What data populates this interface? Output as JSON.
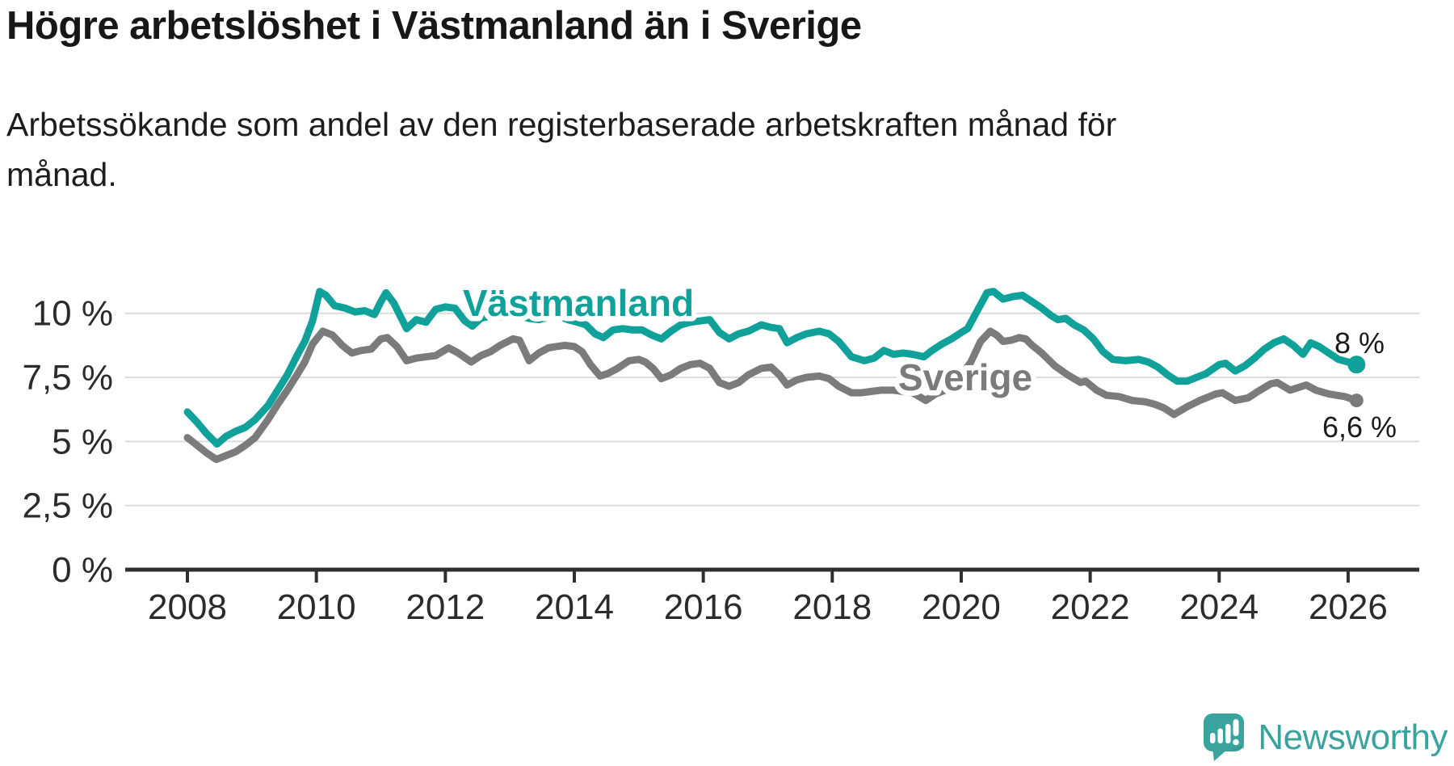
{
  "header": {
    "title": "Högre arbetslöshet i Västmanland än i Sverige",
    "subtitle": "Arbetssökande som andel av den registerbaserade arbetskraften månad för månad."
  },
  "footer": {
    "brand": "Newsworthy"
  },
  "theme": {
    "background": "#ffffff",
    "title_color": "#171717",
    "tick_text_color": "#2b2b2b",
    "annotation_color": "#1a1a1a",
    "gridline_color": "#dcdcdc",
    "axis_color": "#2f2f2f",
    "teal": "#10A29A",
    "gray": "#7b7b7b",
    "logo_teal": "#3BA39D",
    "logo_shade": "#2f8f8a"
  },
  "chart_data": {
    "type": "line",
    "title": "Högre arbetslöshet i Västmanland än i Sverige",
    "subtitle": "Arbetssökande som andel av den registerbaserade arbetskraften månad för månad.",
    "unit": "%",
    "xlabel": "",
    "ylabel": "",
    "x_range": [
      2007.03,
      2027.1
    ],
    "ylim": [
      0,
      11.6
    ],
    "grid": true,
    "legend": "inline-labels",
    "y_ticks": [
      {
        "value": 0,
        "label": "0 %"
      },
      {
        "value": 2.5,
        "label": "2,5 %"
      },
      {
        "value": 5,
        "label": "5 %"
      },
      {
        "value": 7.5,
        "label": "7,5 %"
      },
      {
        "value": 10,
        "label": "10 %"
      }
    ],
    "x_ticks": [
      {
        "value": 2008,
        "label": "2008"
      },
      {
        "value": 2010,
        "label": "2010"
      },
      {
        "value": 2012,
        "label": "2012"
      },
      {
        "value": 2014,
        "label": "2014"
      },
      {
        "value": 2016,
        "label": "2016"
      },
      {
        "value": 2018,
        "label": "2018"
      },
      {
        "value": 2020,
        "label": "2020"
      },
      {
        "value": 2022,
        "label": "2022"
      },
      {
        "value": 2024,
        "label": "2024"
      },
      {
        "value": 2026,
        "label": "2026"
      }
    ],
    "series": [
      {
        "name": "Sverige",
        "color": "#7b7b7b",
        "end_label": "6,6 %",
        "end_value": 6.6,
        "points": [
          [
            2008.0,
            5.15
          ],
          [
            2008.15,
            4.85
          ],
          [
            2008.3,
            4.55
          ],
          [
            2008.45,
            4.3
          ],
          [
            2008.6,
            4.45
          ],
          [
            2008.75,
            4.6
          ],
          [
            2008.9,
            4.85
          ],
          [
            2009.05,
            5.15
          ],
          [
            2009.25,
            5.85
          ],
          [
            2009.4,
            6.45
          ],
          [
            2009.55,
            7.0
          ],
          [
            2009.7,
            7.6
          ],
          [
            2009.82,
            8.1
          ],
          [
            2009.94,
            8.8
          ],
          [
            2010.1,
            9.3
          ],
          [
            2010.25,
            9.15
          ],
          [
            2010.4,
            8.75
          ],
          [
            2010.55,
            8.45
          ],
          [
            2010.7,
            8.55
          ],
          [
            2010.85,
            8.6
          ],
          [
            2011.0,
            9.0
          ],
          [
            2011.1,
            9.05
          ],
          [
            2011.25,
            8.7
          ],
          [
            2011.4,
            8.15
          ],
          [
            2011.55,
            8.25
          ],
          [
            2011.7,
            8.3
          ],
          [
            2011.85,
            8.35
          ],
          [
            2012.05,
            8.65
          ],
          [
            2012.2,
            8.45
          ],
          [
            2012.4,
            8.1
          ],
          [
            2012.55,
            8.35
          ],
          [
            2012.7,
            8.5
          ],
          [
            2012.85,
            8.75
          ],
          [
            2013.05,
            9.0
          ],
          [
            2013.15,
            8.95
          ],
          [
            2013.3,
            8.15
          ],
          [
            2013.45,
            8.45
          ],
          [
            2013.6,
            8.65
          ],
          [
            2013.72,
            8.7
          ],
          [
            2013.85,
            8.75
          ],
          [
            2014.0,
            8.7
          ],
          [
            2014.12,
            8.5
          ],
          [
            2014.25,
            8.0
          ],
          [
            2014.4,
            7.55
          ],
          [
            2014.52,
            7.65
          ],
          [
            2014.67,
            7.85
          ],
          [
            2014.85,
            8.15
          ],
          [
            2015.0,
            8.2
          ],
          [
            2015.1,
            8.1
          ],
          [
            2015.22,
            7.85
          ],
          [
            2015.35,
            7.45
          ],
          [
            2015.5,
            7.6
          ],
          [
            2015.65,
            7.85
          ],
          [
            2015.8,
            8.0
          ],
          [
            2015.95,
            8.05
          ],
          [
            2016.1,
            7.85
          ],
          [
            2016.25,
            7.3
          ],
          [
            2016.4,
            7.15
          ],
          [
            2016.55,
            7.3
          ],
          [
            2016.7,
            7.6
          ],
          [
            2016.9,
            7.85
          ],
          [
            2017.05,
            7.9
          ],
          [
            2017.18,
            7.6
          ],
          [
            2017.3,
            7.2
          ],
          [
            2017.45,
            7.4
          ],
          [
            2017.6,
            7.5
          ],
          [
            2017.8,
            7.55
          ],
          [
            2017.95,
            7.45
          ],
          [
            2018.1,
            7.15
          ],
          [
            2018.3,
            6.9
          ],
          [
            2018.45,
            6.9
          ],
          [
            2018.6,
            6.95
          ],
          [
            2018.75,
            7.0
          ],
          [
            2018.95,
            7.0
          ],
          [
            2019.1,
            6.95
          ],
          [
            2019.25,
            6.9
          ],
          [
            2019.45,
            6.6
          ],
          [
            2019.6,
            6.85
          ],
          [
            2019.75,
            7.0
          ],
          [
            2019.95,
            7.4
          ],
          [
            2020.15,
            8.1
          ],
          [
            2020.3,
            8.9
          ],
          [
            2020.45,
            9.3
          ],
          [
            2020.55,
            9.15
          ],
          [
            2020.65,
            8.9
          ],
          [
            2020.78,
            8.95
          ],
          [
            2020.9,
            9.05
          ],
          [
            2021.0,
            9.0
          ],
          [
            2021.1,
            8.75
          ],
          [
            2021.25,
            8.45
          ],
          [
            2021.45,
            7.95
          ],
          [
            2021.65,
            7.6
          ],
          [
            2021.85,
            7.3
          ],
          [
            2021.93,
            7.35
          ],
          [
            2022.1,
            7.0
          ],
          [
            2022.25,
            6.8
          ],
          [
            2022.45,
            6.75
          ],
          [
            2022.65,
            6.6
          ],
          [
            2022.85,
            6.55
          ],
          [
            2023.0,
            6.45
          ],
          [
            2023.15,
            6.3
          ],
          [
            2023.3,
            6.05
          ],
          [
            2023.5,
            6.35
          ],
          [
            2023.7,
            6.6
          ],
          [
            2023.95,
            6.85
          ],
          [
            2024.05,
            6.9
          ],
          [
            2024.25,
            6.6
          ],
          [
            2024.45,
            6.7
          ],
          [
            2024.6,
            6.95
          ],
          [
            2024.8,
            7.25
          ],
          [
            2024.9,
            7.3
          ],
          [
            2025.1,
            7.0
          ],
          [
            2025.35,
            7.2
          ],
          [
            2025.5,
            7.0
          ],
          [
            2025.7,
            6.85
          ],
          [
            2025.95,
            6.75
          ],
          [
            2026.13,
            6.6
          ]
        ]
      },
      {
        "name": "Västmanland",
        "color": "#10A29A",
        "end_label": "8 %",
        "end_value": 8.0,
        "points": [
          [
            2008.0,
            6.15
          ],
          [
            2008.15,
            5.75
          ],
          [
            2008.3,
            5.3
          ],
          [
            2008.46,
            4.9
          ],
          [
            2008.6,
            5.2
          ],
          [
            2008.75,
            5.4
          ],
          [
            2008.9,
            5.55
          ],
          [
            2009.05,
            5.85
          ],
          [
            2009.25,
            6.4
          ],
          [
            2009.4,
            7.0
          ],
          [
            2009.55,
            7.6
          ],
          [
            2009.7,
            8.35
          ],
          [
            2009.82,
            8.9
          ],
          [
            2009.94,
            9.7
          ],
          [
            2010.05,
            10.85
          ],
          [
            2010.15,
            10.7
          ],
          [
            2010.28,
            10.3
          ],
          [
            2010.45,
            10.2
          ],
          [
            2010.6,
            10.05
          ],
          [
            2010.75,
            10.1
          ],
          [
            2010.9,
            9.95
          ],
          [
            2011.0,
            10.45
          ],
          [
            2011.08,
            10.8
          ],
          [
            2011.2,
            10.4
          ],
          [
            2011.3,
            9.9
          ],
          [
            2011.4,
            9.4
          ],
          [
            2011.55,
            9.75
          ],
          [
            2011.7,
            9.65
          ],
          [
            2011.85,
            10.15
          ],
          [
            2012.0,
            10.25
          ],
          [
            2012.15,
            10.2
          ],
          [
            2012.3,
            9.7
          ],
          [
            2012.42,
            9.5
          ],
          [
            2012.55,
            9.8
          ],
          [
            2012.7,
            9.9
          ],
          [
            2012.85,
            9.85
          ],
          [
            2013.0,
            9.95
          ],
          [
            2013.15,
            9.9
          ],
          [
            2013.3,
            9.8
          ],
          [
            2013.45,
            9.75
          ],
          [
            2013.6,
            9.85
          ],
          [
            2013.75,
            9.9
          ],
          [
            2013.9,
            9.75
          ],
          [
            2014.05,
            9.65
          ],
          [
            2014.18,
            9.55
          ],
          [
            2014.32,
            9.2
          ],
          [
            2014.45,
            9.05
          ],
          [
            2014.6,
            9.35
          ],
          [
            2014.75,
            9.4
          ],
          [
            2014.9,
            9.35
          ],
          [
            2015.05,
            9.35
          ],
          [
            2015.2,
            9.15
          ],
          [
            2015.35,
            9.0
          ],
          [
            2015.5,
            9.3
          ],
          [
            2015.65,
            9.55
          ],
          [
            2015.8,
            9.65
          ],
          [
            2015.95,
            9.7
          ],
          [
            2016.1,
            9.75
          ],
          [
            2016.25,
            9.25
          ],
          [
            2016.4,
            9.0
          ],
          [
            2016.55,
            9.2
          ],
          [
            2016.7,
            9.3
          ],
          [
            2016.9,
            9.55
          ],
          [
            2017.05,
            9.45
          ],
          [
            2017.18,
            9.4
          ],
          [
            2017.3,
            8.85
          ],
          [
            2017.45,
            9.05
          ],
          [
            2017.6,
            9.2
          ],
          [
            2017.8,
            9.3
          ],
          [
            2017.95,
            9.2
          ],
          [
            2018.1,
            8.9
          ],
          [
            2018.3,
            8.3
          ],
          [
            2018.5,
            8.15
          ],
          [
            2018.65,
            8.25
          ],
          [
            2018.8,
            8.55
          ],
          [
            2018.95,
            8.4
          ],
          [
            2019.1,
            8.45
          ],
          [
            2019.25,
            8.4
          ],
          [
            2019.42,
            8.3
          ],
          [
            2019.55,
            8.55
          ],
          [
            2019.7,
            8.8
          ],
          [
            2019.85,
            9.0
          ],
          [
            2020.0,
            9.25
          ],
          [
            2020.1,
            9.4
          ],
          [
            2020.25,
            10.1
          ],
          [
            2020.4,
            10.8
          ],
          [
            2020.5,
            10.85
          ],
          [
            2020.65,
            10.55
          ],
          [
            2020.8,
            10.65
          ],
          [
            2020.95,
            10.7
          ],
          [
            2021.1,
            10.45
          ],
          [
            2021.25,
            10.2
          ],
          [
            2021.4,
            9.9
          ],
          [
            2021.5,
            9.75
          ],
          [
            2021.62,
            9.8
          ],
          [
            2021.75,
            9.55
          ],
          [
            2021.9,
            9.35
          ],
          [
            2022.05,
            9.0
          ],
          [
            2022.2,
            8.5
          ],
          [
            2022.35,
            8.2
          ],
          [
            2022.55,
            8.15
          ],
          [
            2022.75,
            8.2
          ],
          [
            2022.9,
            8.1
          ],
          [
            2023.05,
            7.9
          ],
          [
            2023.2,
            7.6
          ],
          [
            2023.35,
            7.35
          ],
          [
            2023.5,
            7.35
          ],
          [
            2023.65,
            7.5
          ],
          [
            2023.8,
            7.65
          ],
          [
            2024.0,
            8.0
          ],
          [
            2024.1,
            8.05
          ],
          [
            2024.25,
            7.75
          ],
          [
            2024.4,
            7.95
          ],
          [
            2024.55,
            8.25
          ],
          [
            2024.7,
            8.6
          ],
          [
            2024.85,
            8.85
          ],
          [
            2025.0,
            9.0
          ],
          [
            2025.15,
            8.75
          ],
          [
            2025.3,
            8.4
          ],
          [
            2025.42,
            8.85
          ],
          [
            2025.55,
            8.7
          ],
          [
            2025.7,
            8.45
          ],
          [
            2025.85,
            8.2
          ],
          [
            2026.0,
            8.1
          ],
          [
            2026.13,
            8.0
          ]
        ]
      }
    ]
  }
}
